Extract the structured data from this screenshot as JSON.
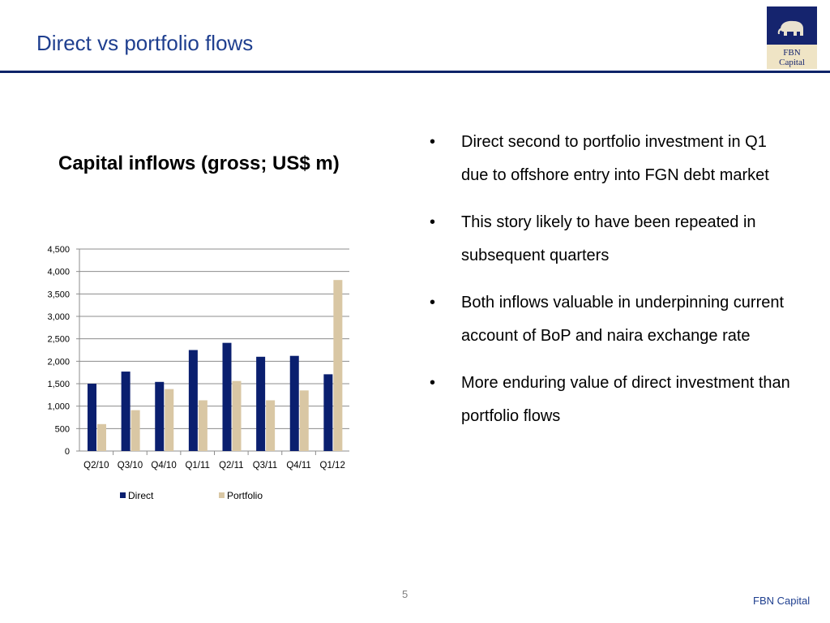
{
  "slide": {
    "title": "Direct vs portfolio flows",
    "page_number": "5",
    "footer_brand": "FBN Capital"
  },
  "logo": {
    "line1": "FBN",
    "line2": "Capital",
    "icon": "elephant-icon"
  },
  "chart_heading": "Capital inflows (gross; US$ m)",
  "bullets": [
    "Direct second to portfolio investment in Q1 due to offshore entry into FGN debt market",
    "This story likely to have been repeated in subsequent quarters",
    "Both inflows valuable in underpinning current account of BoP and naira exchange rate",
    "More enduring value of direct investment than portfolio flows"
  ],
  "bullet_symbol": "•",
  "chart_data": {
    "type": "bar",
    "categories": [
      "Q2/10",
      "Q3/10",
      "Q4/10",
      "Q1/11",
      "Q2/11",
      "Q3/11",
      "Q4/11",
      "Q1/12"
    ],
    "series": [
      {
        "name": "Direct",
        "values": [
          1500,
          1770,
          1540,
          2250,
          2410,
          2100,
          2120,
          1710
        ],
        "color": "#0a1f6f"
      },
      {
        "name": "Portfolio",
        "values": [
          600,
          910,
          1380,
          1130,
          1560,
          1130,
          1350,
          3810
        ],
        "color": "#d9c7a4"
      }
    ],
    "ylim": [
      0,
      4500
    ],
    "yticks": [
      0,
      500,
      1000,
      1500,
      2000,
      2500,
      3000,
      3500,
      4000,
      4500
    ],
    "ytick_labels": [
      "0",
      "500",
      "1,000",
      "1,500",
      "2,000",
      "2,500",
      "3,000",
      "3,500",
      "4,000",
      "4,500"
    ],
    "grid": true,
    "legend": "bottom"
  }
}
